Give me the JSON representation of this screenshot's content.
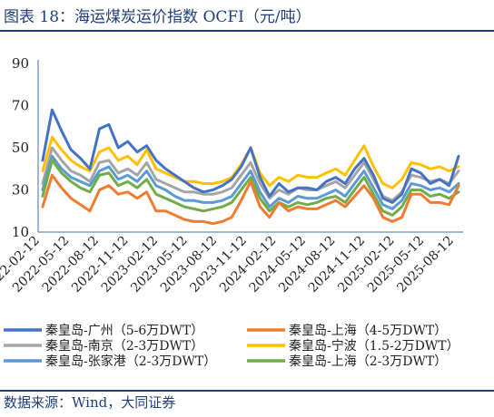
{
  "header": {
    "title": "图表 18：海运煤炭运价指数 OCFI（元/吨）"
  },
  "footer": {
    "source": "数据来源：Wind，大同证券"
  },
  "chart_data": {
    "type": "line",
    "title": "",
    "xlabel": "",
    "ylabel": "",
    "ylim": [
      10,
      90
    ],
    "y_ticks_shown": [
      "90",
      "70",
      "50",
      "30",
      "10"
    ],
    "x_tick_labels": [
      "2022-02-12",
      "2022-05-12",
      "2022-08-12",
      "2022-11-12",
      "2023-02-12",
      "2023-05-12",
      "2023-08-12",
      "2023-11-12",
      "2024-02-12",
      "2024-05-12",
      "2024-08-12",
      "2024-11-12",
      "2025-02-12",
      "2025-05-12",
      "2025-08-12"
    ],
    "x": [
      "2022-02",
      "2022-03",
      "2022-04",
      "2022-05",
      "2022-06",
      "2022-07",
      "2022-08",
      "2022-09",
      "2022-10",
      "2022-11",
      "2022-12",
      "2023-01",
      "2023-02",
      "2023-03",
      "2023-04",
      "2023-05",
      "2023-06",
      "2023-07",
      "2023-08",
      "2023-09",
      "2023-10",
      "2023-11",
      "2023-12",
      "2024-01",
      "2024-02",
      "2024-03",
      "2024-04",
      "2024-05",
      "2024-06",
      "2024-07",
      "2024-08",
      "2024-09",
      "2024-10",
      "2024-11",
      "2024-12",
      "2025-01",
      "2025-02",
      "2025-03",
      "2025-04",
      "2025-05",
      "2025-06",
      "2025-07",
      "2025-08",
      "2025-09",
      "2025-10"
    ],
    "grid": false,
    "legend_position": "bottom",
    "series": [
      {
        "name": "秦皇岛-广州（5-6万DWT）",
        "color": "#4472c4",
        "values": [
          44,
          68,
          58,
          49,
          45,
          40,
          59,
          61,
          50,
          53,
          48,
          51,
          44,
          40,
          37,
          34,
          31,
          29,
          30,
          32,
          35,
          41,
          50,
          36,
          27,
          33,
          29,
          31,
          31,
          30,
          34,
          36,
          33,
          40,
          45,
          37,
          26,
          24,
          28,
          40,
          38,
          33,
          35,
          32,
          46
        ]
      },
      {
        "name": "秦皇岛-上海（4-5万DWT）",
        "color": "#ed7d31",
        "values": [
          22,
          37,
          31,
          26,
          23,
          20,
          30,
          32,
          28,
          29,
          26,
          29,
          20,
          20,
          18,
          16,
          15,
          15,
          14,
          15,
          17,
          25,
          34,
          22,
          17,
          24,
          20,
          22,
          21,
          21,
          23,
          25,
          22,
          27,
          32,
          26,
          17,
          15,
          17,
          28,
          28,
          24,
          24,
          23,
          32
        ]
      },
      {
        "name": "秦皇岛-南京（2-3万DWT）",
        "color": "#a5a5a5",
        "values": [
          33,
          50,
          44,
          39,
          37,
          34,
          43,
          44,
          38,
          40,
          37,
          43,
          35,
          33,
          31,
          29,
          29,
          28,
          28,
          29,
          31,
          37,
          43,
          33,
          26,
          30,
          28,
          31,
          30,
          30,
          32,
          34,
          31,
          37,
          43,
          35,
          27,
          25,
          29,
          37,
          36,
          34,
          35,
          33,
          39
        ]
      },
      {
        "name": "秦皇岛-宁波（1.5-2万DWT）",
        "color": "#ffc000",
        "values": [
          39,
          55,
          49,
          44,
          41,
          39,
          48,
          50,
          44,
          46,
          42,
          49,
          40,
          38,
          36,
          34,
          34,
          33,
          33,
          34,
          36,
          42,
          50,
          38,
          32,
          36,
          34,
          37,
          36,
          36,
          38,
          40,
          37,
          44,
          51,
          41,
          33,
          31,
          35,
          43,
          42,
          40,
          41,
          39,
          41
        ]
      },
      {
        "name": "秦皇岛-张家港（2-3万DWT）",
        "color": "#5b9bd5",
        "values": [
          30,
          46,
          40,
          36,
          34,
          32,
          39,
          41,
          35,
          37,
          34,
          39,
          32,
          30,
          27,
          25,
          25,
          24,
          24,
          25,
          27,
          33,
          39,
          29,
          22,
          26,
          24,
          27,
          26,
          26,
          28,
          30,
          27,
          33,
          39,
          31,
          23,
          21,
          25,
          33,
          32,
          30,
          31,
          29,
          33
        ]
      },
      {
        "name": "秦皇岛-上海（2-3万DWT）",
        "color": "#70ad47",
        "values": [
          27,
          44,
          38,
          34,
          31,
          29,
          37,
          38,
          32,
          34,
          31,
          35,
          28,
          26,
          24,
          22,
          21,
          20,
          21,
          22,
          24,
          30,
          36,
          26,
          20,
          24,
          22,
          24,
          23,
          24,
          26,
          27,
          24,
          30,
          36,
          28,
          20,
          18,
          22,
          30,
          30,
          27,
          28,
          26,
          29
        ]
      }
    ]
  }
}
